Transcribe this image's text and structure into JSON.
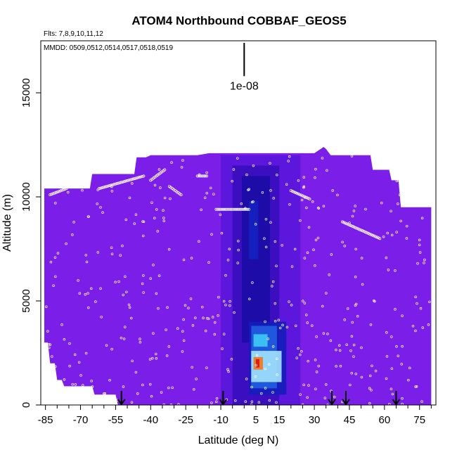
{
  "chart_data": {
    "type": "heatmap",
    "title": "ATOM4 Northbound COBBAF_GEOS5",
    "subtitle_flights": "Flts: 7,8,9,10,11,12",
    "subtitle_dates": "MMDD: 0509,0512,0514,0517,0518,0519",
    "xlabel": "Latitude (deg N)",
    "ylabel": "Altitude (m)",
    "xlim": [
      -87,
      82
    ],
    "ylim": [
      0,
      17500
    ],
    "x_ticks": [
      -85,
      -70,
      -55,
      -40,
      -25,
      -10,
      5,
      15,
      30,
      45,
      60,
      75
    ],
    "x_tick_labels": [
      "-85",
      "-70",
      "-55",
      "-40",
      "-25",
      "-10",
      "5",
      "15",
      "30",
      "45",
      "60",
      "75"
    ],
    "x_minor_step": 5,
    "y_ticks": [
      0,
      5000,
      10000,
      15000
    ],
    "y_tick_labels": [
      "0",
      "5000",
      "10000",
      "15000"
    ],
    "scale_label": "1e-08",
    "scale_bar": {
      "x": 0,
      "y_bottom": 15800,
      "y_top": 17400
    },
    "background_color": "#7b1fe8",
    "profile_arrows_lat": [
      -52.5,
      -9,
      37.5,
      43.5,
      65
    ],
    "domain_ceiling": [
      [
        -85.5,
        10400
      ],
      [
        -66,
        10400
      ],
      [
        -65,
        11100
      ],
      [
        -47,
        11100
      ],
      [
        -46,
        11900
      ],
      [
        -42,
        11900
      ],
      [
        -40,
        12000
      ],
      [
        -20,
        12000
      ],
      [
        -15,
        12100
      ],
      [
        10,
        12100
      ],
      [
        30,
        12100
      ],
      [
        34,
        12400
      ],
      [
        35,
        12300
      ],
      [
        37,
        12000
      ],
      [
        54,
        12000
      ],
      [
        55,
        11300
      ],
      [
        62,
        11300
      ],
      [
        63,
        10800
      ],
      [
        66,
        10800
      ],
      [
        67,
        9500
      ],
      [
        80,
        9500
      ]
    ],
    "domain_floor": [
      [
        -85.5,
        3000
      ],
      [
        -84,
        3000
      ],
      [
        -83,
        2000
      ],
      [
        -81,
        2000
      ],
      [
        -80,
        1200
      ],
      [
        -78,
        1200
      ],
      [
        -77,
        900
      ],
      [
        -65,
        900
      ],
      [
        -64,
        500
      ],
      [
        -55,
        500
      ],
      [
        -54,
        0
      ],
      [
        80,
        0
      ]
    ],
    "enhancements": [
      {
        "lat": [
          -10,
          24
        ],
        "alt": [
          0,
          12000
        ],
        "level": 0.12
      },
      {
        "lat": [
          -5,
          15
        ],
        "alt": [
          0,
          11500
        ],
        "level": 0.22
      },
      {
        "lat": [
          -1,
          11
        ],
        "alt": [
          3000,
          11000
        ],
        "level": 0.32
      },
      {
        "lat": [
          2,
          6
        ],
        "alt": [
          7000,
          9800
        ],
        "level": 0.42
      },
      {
        "lat": [
          2,
          18
        ],
        "alt": [
          500,
          4000
        ],
        "level": 0.4
      },
      {
        "lat": [
          3,
          14
        ],
        "alt": [
          800,
          3800
        ],
        "level": 0.55
      },
      {
        "lat": [
          4,
          10
        ],
        "alt": [
          2800,
          3400
        ],
        "level": 0.72
      },
      {
        "lat": [
          3,
          16
        ],
        "alt": [
          1100,
          2600
        ],
        "level": 0.78
      },
      {
        "lat": [
          4,
          8
        ],
        "alt": [
          1700,
          2300
        ],
        "level": 0.95
      },
      {
        "lat": [
          5,
          6.5
        ],
        "alt": [
          1800,
          2200
        ],
        "level": 1.0
      }
    ],
    "flight_track_segments": [
      {
        "lat": [
          -62,
          -43
        ],
        "alt": [
          10400,
          11000
        ]
      },
      {
        "lat": [
          -40,
          -34
        ],
        "alt": [
          10800,
          11300
        ]
      },
      {
        "lat": [
          -20,
          -16
        ],
        "alt": [
          11000,
          11000
        ]
      },
      {
        "lat": [
          -12,
          2
        ],
        "alt": [
          9400,
          9400
        ]
      },
      {
        "lat": [
          20,
          28
        ],
        "alt": [
          10300,
          9900
        ]
      },
      {
        "lat": [
          42,
          58
        ],
        "alt": [
          8800,
          8000
        ]
      },
      {
        "lat": [
          66,
          75
        ],
        "alt": [
          10800,
          11100
        ]
      },
      {
        "lat": [
          -83,
          -76
        ],
        "alt": [
          10100,
          10400
        ]
      },
      {
        "lat": [
          -32,
          -27
        ],
        "alt": [
          10500,
          10100
        ]
      }
    ],
    "n_scatter_samples": 420,
    "sample_lat_range": [
      -85,
      80
    ],
    "sample_alt_range": [
      0,
      12000
    ]
  }
}
